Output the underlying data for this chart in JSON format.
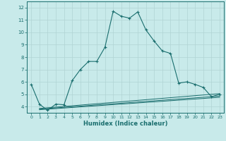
{
  "xlabel": "Humidex (Indice chaleur)",
  "bg_color": "#c8eaea",
  "grid_color": "#b0d4d4",
  "line_color": "#1a6e6e",
  "xlim": [
    -0.5,
    23.5
  ],
  "ylim": [
    3.5,
    12.5
  ],
  "xticks": [
    0,
    1,
    2,
    3,
    4,
    5,
    6,
    7,
    8,
    9,
    10,
    11,
    12,
    13,
    14,
    15,
    16,
    17,
    18,
    19,
    20,
    21,
    22,
    23
  ],
  "yticks": [
    4,
    5,
    6,
    7,
    8,
    9,
    10,
    11,
    12
  ],
  "main_series_x": [
    0,
    1,
    2,
    3,
    4,
    5,
    6,
    7,
    8,
    9,
    10,
    11,
    12,
    13,
    14,
    15,
    16,
    17,
    18,
    19,
    20,
    21,
    22,
    23
  ],
  "main_series_y": [
    5.8,
    4.2,
    3.7,
    4.2,
    4.15,
    6.1,
    7.0,
    7.65,
    7.65,
    8.8,
    11.7,
    11.3,
    11.15,
    11.65,
    10.2,
    9.3,
    8.5,
    8.3,
    5.9,
    6.0,
    5.8,
    5.55,
    4.8,
    5.0
  ],
  "line2_x": [
    1,
    23
  ],
  "line2_y": [
    3.85,
    5.05
  ],
  "line3_x": [
    1,
    23
  ],
  "line3_y": [
    3.8,
    4.85
  ],
  "line4_x": [
    1,
    23
  ],
  "line4_y": [
    3.75,
    4.75
  ]
}
